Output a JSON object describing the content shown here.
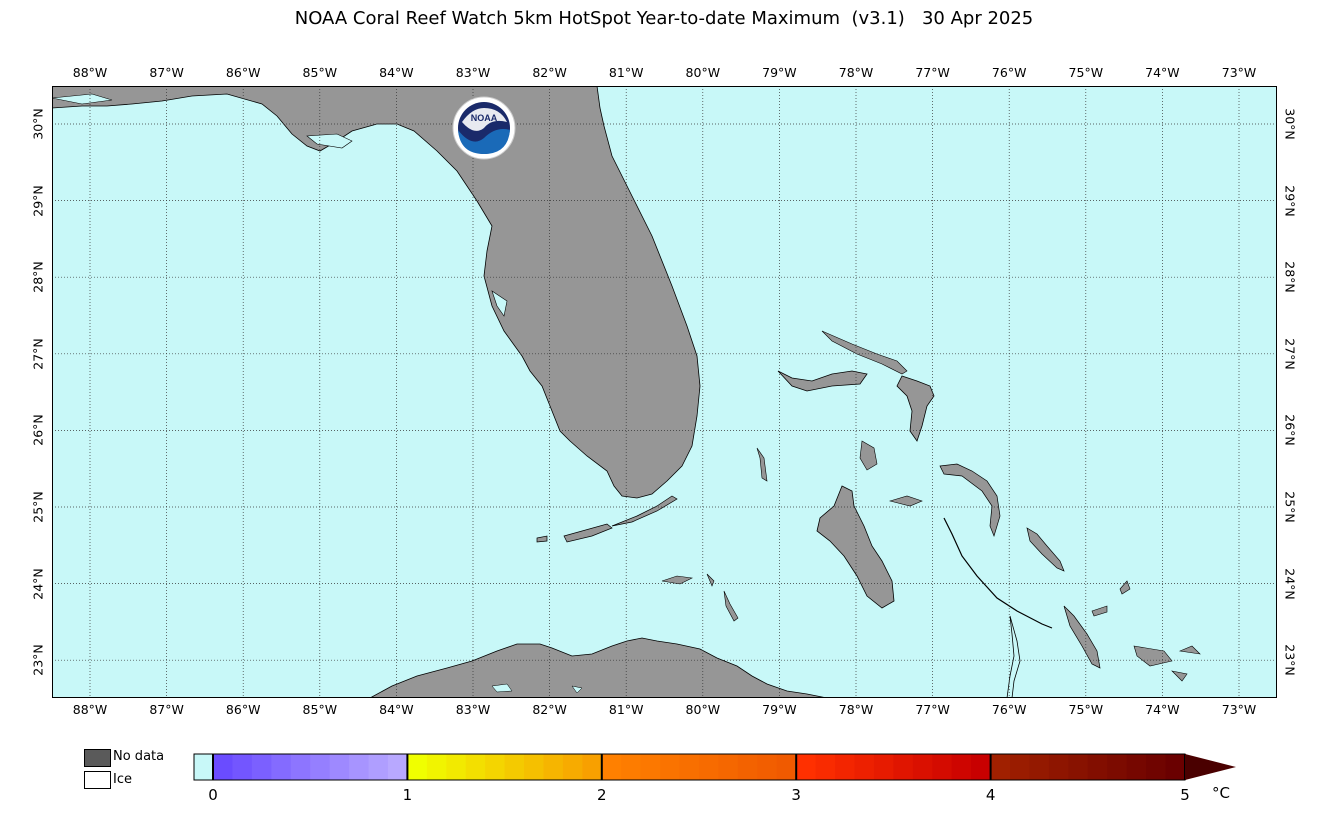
{
  "title": "NOAA Coral Reef Watch 5km HotSpot Year-to-date Maximum  (v3.1)   30 Apr 2025",
  "map": {
    "lon_labels": [
      "88°W",
      "87°W",
      "86°W",
      "85°W",
      "84°W",
      "83°W",
      "82°W",
      "81°W",
      "80°W",
      "79°W",
      "78°W",
      "77°W",
      "76°W",
      "75°W",
      "74°W",
      "73°W"
    ],
    "lat_labels": [
      "30°N",
      "29°N",
      "28°N",
      "27°N",
      "26°N",
      "25°N",
      "24°N",
      "23°N"
    ],
    "extent": {
      "lon": [
        -88.5,
        -72.5
      ],
      "lat": [
        22.5,
        30.5
      ]
    },
    "colors": {
      "ocean": "#c8f8f8",
      "land": "#969696",
      "grid": "#333333"
    },
    "logo": {
      "icon": "noaa-logo",
      "text": "NOAA"
    },
    "regions": [
      "Florida",
      "Bahamas",
      "Cuba",
      "Florida Keys"
    ]
  },
  "legend": {
    "no_data_label": "No data",
    "ice_label": "Ice",
    "no_data_color": "#5a5a5a",
    "ice_color": "#ffffff"
  },
  "colorbar": {
    "ticks": [
      "0",
      "1",
      "2",
      "3",
      "4",
      "5"
    ],
    "unit": "°C",
    "zero_color": "#c8f8f8",
    "bands": [
      {
        "range": "0-1",
        "from": "#6a4cff",
        "to": "#b8a8ff"
      },
      {
        "range": "1-2",
        "from": "#f0ff00",
        "to": "#f8a000"
      },
      {
        "range": "2-3",
        "from": "#ff8000",
        "to": "#f05a00"
      },
      {
        "range": "3-4",
        "from": "#ff3000",
        "to": "#c80000"
      },
      {
        "range": "4-5",
        "from": "#a02000",
        "to": "#6a0000"
      }
    ],
    "overflow_color": "#4a0000"
  }
}
